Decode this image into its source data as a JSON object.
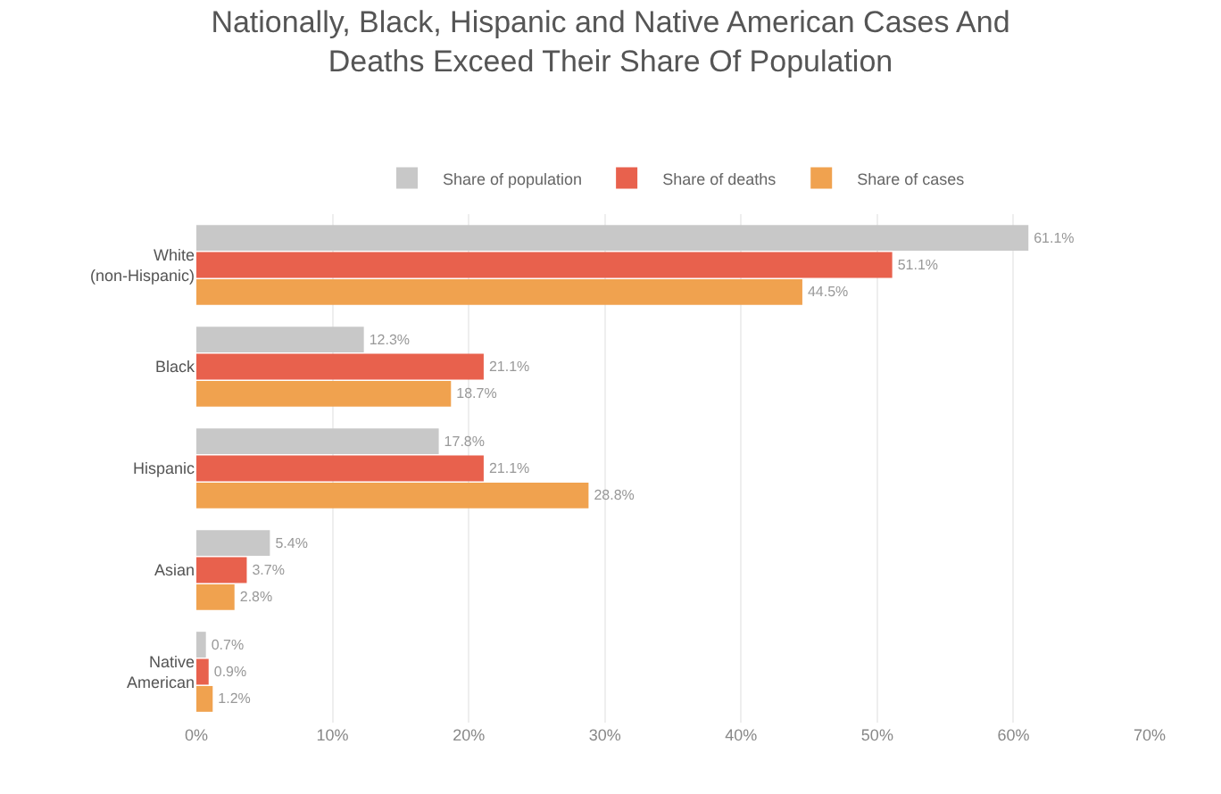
{
  "chart_data": {
    "type": "bar",
    "orientation": "horizontal",
    "title": "Nationally, Black, Hispanic and Native American Cases And Deaths Exceed Their Share Of Population",
    "categories": [
      "White (non-Hispanic)",
      "Black",
      "Hispanic",
      "Asian",
      "Native American"
    ],
    "series": [
      {
        "name": "Share of population",
        "color": "#c8c8c8",
        "values": [
          61.1,
          12.3,
          17.8,
          5.4,
          0.7
        ],
        "value_labels": [
          "61.1%",
          "12.3%",
          "17.8%",
          "5.4%",
          "0.7%"
        ]
      },
      {
        "name": "Share of deaths",
        "color": "#e8614d",
        "values": [
          51.1,
          21.1,
          21.1,
          3.7,
          0.9
        ],
        "value_labels": [
          "51.1%",
          "21.1%",
          "21.1%",
          "3.7%",
          "0.9%"
        ]
      },
      {
        "name": "Share of cases",
        "color": "#f0a24f",
        "values": [
          44.5,
          18.7,
          28.8,
          2.8,
          1.2
        ],
        "value_labels": [
          "44.5%",
          "18.7%",
          "28.8%",
          "2.8%",
          "1.2%"
        ]
      }
    ],
    "xlim": [
      0,
      70
    ],
    "xticks": [
      {
        "value": 0,
        "label": "0%"
      },
      {
        "value": 10,
        "label": "10%"
      },
      {
        "value": 20,
        "label": "20%"
      },
      {
        "value": 30,
        "label": "30%"
      },
      {
        "value": 40,
        "label": "40%"
      },
      {
        "value": 50,
        "label": "50%"
      },
      {
        "value": 60,
        "label": "60%"
      },
      {
        "value": 70,
        "label": "70%"
      }
    ],
    "grid": "x",
    "legend": "top"
  }
}
